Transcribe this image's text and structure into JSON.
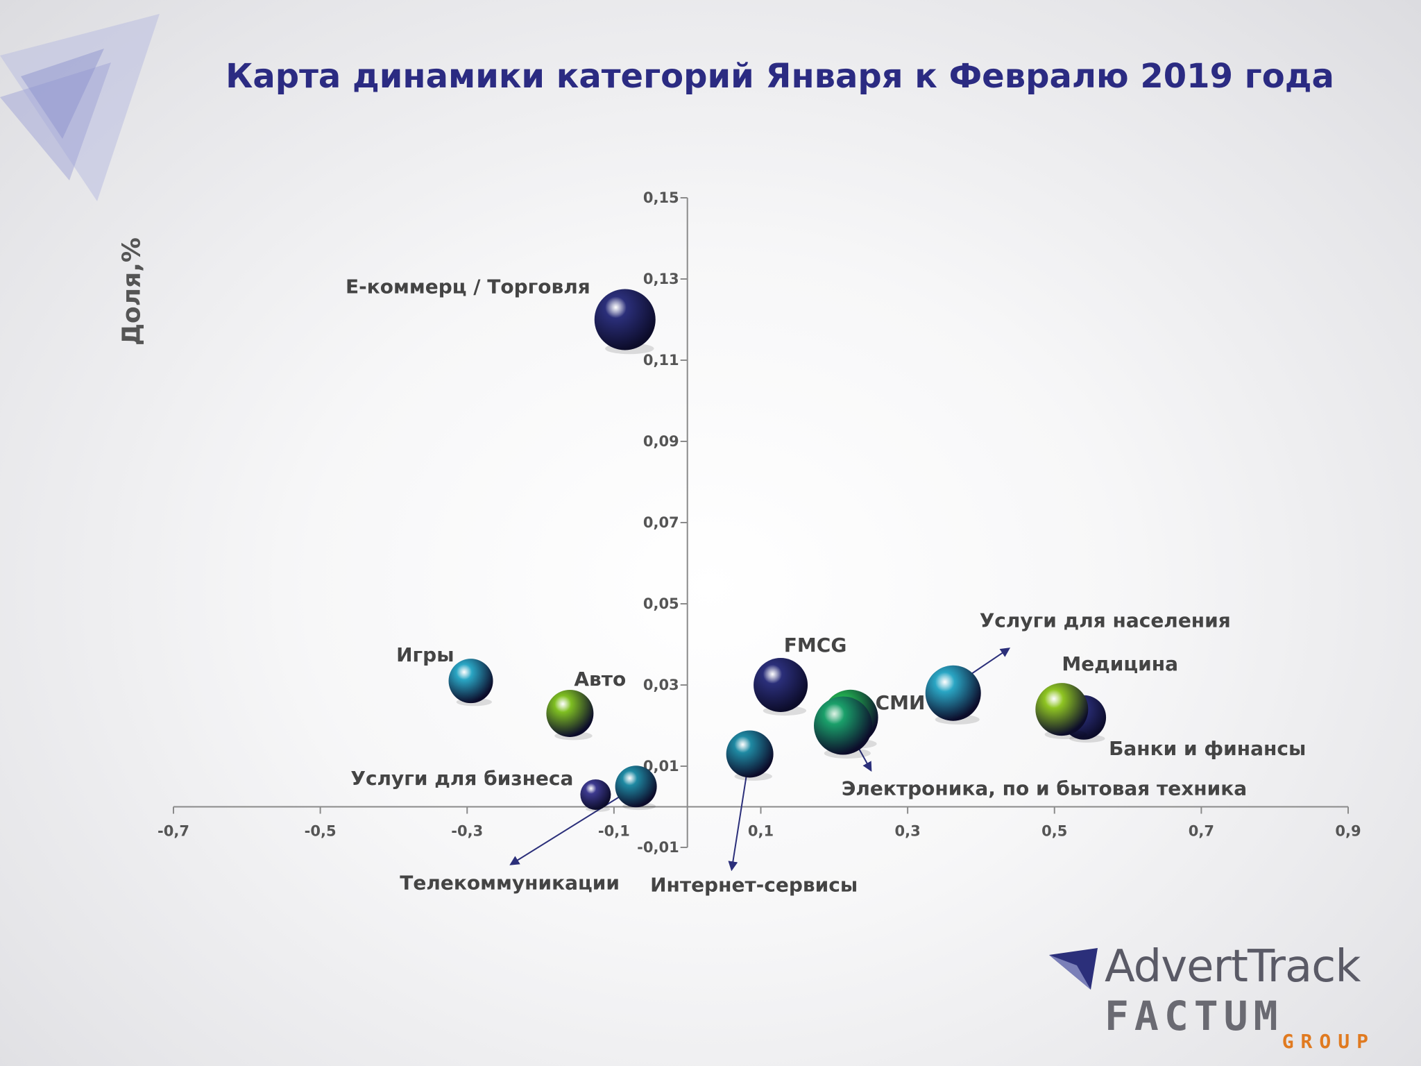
{
  "chart_data": {
    "type": "bubble",
    "title": "Карта динамики категорий Января к Февралю 2019 года",
    "ylabel": "Доля,%",
    "xlabel": "",
    "xlim": [
      -0.7,
      0.9
    ],
    "ylim": [
      -0.01,
      0.15
    ],
    "x_ticks": [
      "-0,7",
      "-0,5",
      "-0,3",
      "-0,1",
      "0,1",
      "0,3",
      "0,5",
      "0,7",
      "0,9"
    ],
    "y_ticks": [
      "-0,01",
      "0,01",
      "0,03",
      "0,05",
      "0,07",
      "0,09",
      "0,11",
      "0,13",
      "0,15"
    ],
    "series": [
      {
        "name": "Е-коммерц / Торговля",
        "x": -0.085,
        "y": 0.12,
        "size": 44,
        "color": "#2b2f7a"
      },
      {
        "name": "Игры",
        "x": -0.295,
        "y": 0.031,
        "size": 32,
        "color": "#2aa6c4"
      },
      {
        "name": "Авто",
        "x": -0.16,
        "y": 0.023,
        "size": 34,
        "color": "#7fbf22"
      },
      {
        "name": "Услуги для бизнеса",
        "x": -0.125,
        "y": 0.003,
        "size": 22,
        "color": "#3d3a8f"
      },
      {
        "name": "Телекоммуникации",
        "x": -0.07,
        "y": 0.005,
        "size": 30,
        "color": "#1f8aa3"
      },
      {
        "name": "Интернет-сервисы",
        "x": 0.085,
        "y": 0.013,
        "size": 34,
        "color": "#1f8aa3"
      },
      {
        "name": "FMCG",
        "x": 0.127,
        "y": 0.03,
        "size": 39,
        "color": "#2b2f7a"
      },
      {
        "name": "СМИ",
        "x": 0.222,
        "y": 0.022,
        "size": 40,
        "color": "#22b050"
      },
      {
        "name": "Электроника, по и бытовая техника",
        "x": 0.212,
        "y": 0.02,
        "size": 42,
        "color": "#1aa06a"
      },
      {
        "name": "Услуги для населения",
        "x": 0.362,
        "y": 0.028,
        "size": 40,
        "color": "#2aa6c4"
      },
      {
        "name": "Банки и финансы",
        "x": 0.54,
        "y": 0.022,
        "size": 32,
        "color": "#2b2f7a"
      },
      {
        "name": "Медицина",
        "x": 0.51,
        "y": 0.024,
        "size": 38,
        "color": "#8fc522"
      }
    ]
  },
  "logo": {
    "line1": "AdvertTrack",
    "line2": "FACTUM",
    "line3": "GROUP"
  }
}
